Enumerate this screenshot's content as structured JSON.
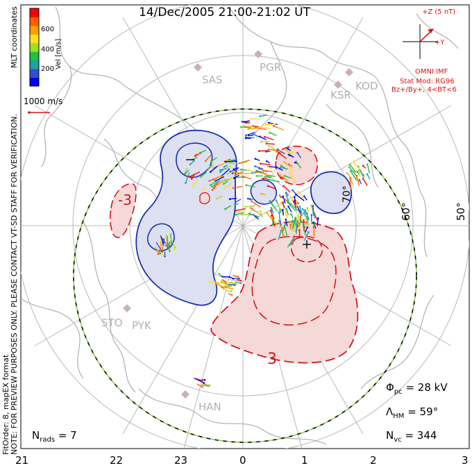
{
  "title": "14/Dec/2005 21:00-21:02 UT",
  "colorbar": {
    "label": "Vel [m/s]",
    "ticks": [
      "600",
      "400",
      "200"
    ],
    "colors": [
      "#0000ff",
      "#3050d0",
      "#20a0a0",
      "#20c040",
      "#a0e020",
      "#ffe020",
      "#ffa000",
      "#ff6000",
      "#ff0000"
    ]
  },
  "side_notes": {
    "coords": "MLT coordinates",
    "preview": "NOTE: FOR PREVIEW PURPOSES ONLY. PLEASE CONTACT VT-SD STAFF FOR VERIFICATION.",
    "fit": "FitOrder: 8, mapEX format"
  },
  "ref_vector_label": "1000 m/s",
  "imf": {
    "z_label": "+Z (5 nT)",
    "y_label": "+Y",
    "source": "OMNI IMF",
    "model": "Stat Mod: RG96",
    "condition": "Bz+/By+, 4<BT<6",
    "color": "#e01010"
  },
  "stations": [
    "SAS",
    "PGR",
    "KSR",
    "KOD",
    "STO",
    "PYK",
    "HAN"
  ],
  "latitude_labels": [
    "70°",
    "60°",
    "50°"
  ],
  "contour_labels": [
    "-",
    "+",
    "-3",
    "3"
  ],
  "stats": {
    "phi_pc_label": "Φ",
    "phi_pc_sub": "pc",
    "phi_pc_value": "= 28 kV",
    "lambda_label": "Λ",
    "lambda_sub": "HM",
    "lambda_value": "= 59°",
    "nvc_label": "N",
    "nvc_sub": "vc",
    "nvc_value": "= 344",
    "nrads_label": "N",
    "nrads_sub": "rads",
    "nrads_value": "= 7"
  },
  "x_ticks": [
    "21",
    "22",
    "23",
    "0",
    "1",
    "2",
    "3"
  ],
  "styles": {
    "negative_fill": "#dde0f0",
    "negative_line": "#1a2fb0",
    "positive_fill": "#f5d8d8",
    "positive_line": "#d01818",
    "grid": "#b8b8b8",
    "coast": "#b4b4b4",
    "boundary_dash": "#8fd14f"
  }
}
